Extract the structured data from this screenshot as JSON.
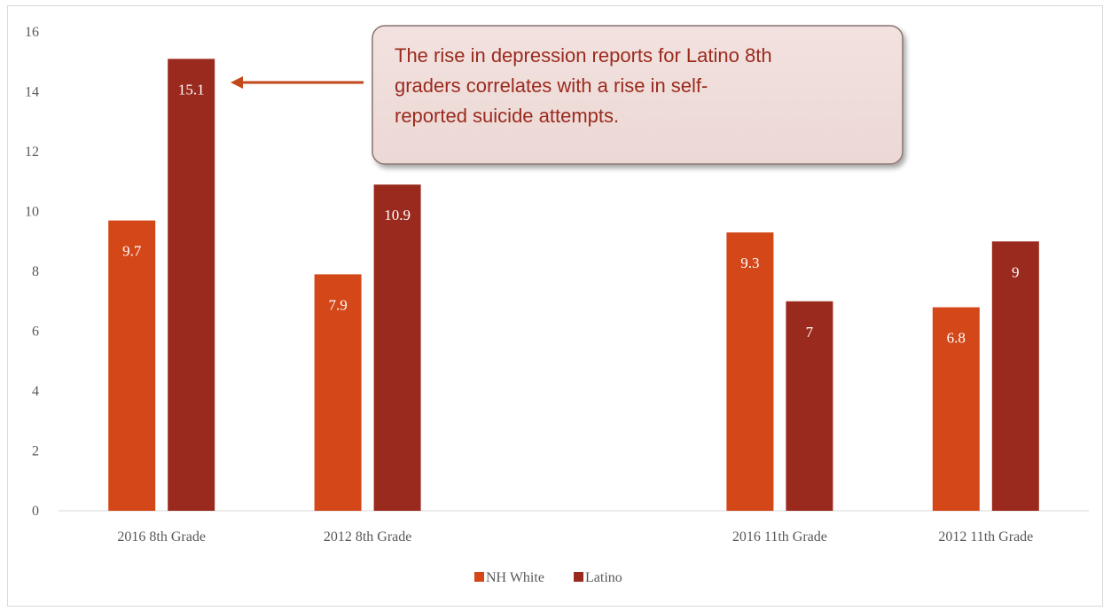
{
  "colors": {
    "nh_white": "#d34718",
    "latino": "#9b2a1e",
    "axis": "#d9d9d9",
    "text": "#595959",
    "callout_fill": "#ecd8d5",
    "callout_border": "#8a7470",
    "arrow": "#c0481b"
  },
  "chart_data": {
    "type": "bar",
    "categories": [
      "2016 8th Grade",
      "2012 8th Grade",
      "",
      "2016 11th Grade",
      "2012 11th Grade"
    ],
    "series": [
      {
        "name": "NH White",
        "values": [
          9.7,
          7.9,
          null,
          9.3,
          6.8
        ],
        "labels": [
          "9.7",
          "7.9",
          "",
          "9.3",
          "6.8"
        ]
      },
      {
        "name": "Latino",
        "values": [
          15.1,
          10.9,
          null,
          7,
          9
        ],
        "labels": [
          "15.1",
          "10.9",
          "",
          "7",
          "9"
        ]
      }
    ],
    "title": "",
    "xlabel": "",
    "ylabel": "",
    "ylim": [
      0,
      16
    ],
    "yticks": [
      0,
      2,
      4,
      6,
      8,
      10,
      12,
      14,
      16
    ],
    "grid": false,
    "legend": "bottom",
    "annotation": {
      "lines": [
        "The rise in depression reports for Latino 8th",
        "graders correlates with a rise in self-",
        "reported suicide attempts."
      ],
      "points_to": "2016 8th Grade Latino"
    }
  }
}
